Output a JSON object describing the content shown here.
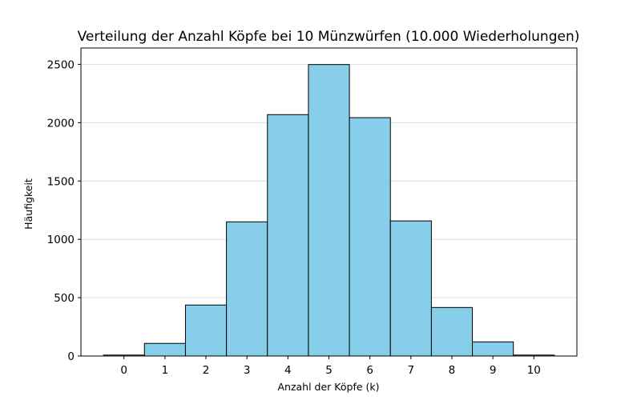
{
  "chart_data": {
    "type": "bar",
    "title": "Verteilung der Anzahl Köpfe bei 10 Münzwürfen (10.000 Wiederholungen)",
    "xlabel": "Anzahl der Köpfe (k)",
    "ylabel": "Häufigkeit",
    "categories": [
      "0",
      "1",
      "2",
      "3",
      "4",
      "5",
      "6",
      "7",
      "8",
      "9",
      "10"
    ],
    "values": [
      8,
      108,
      437,
      1150,
      2069,
      2498,
      2043,
      1158,
      416,
      121,
      8
    ],
    "ylim": [
      0,
      2640
    ],
    "yticks": [
      "0",
      "500",
      "1000",
      "1500",
      "2000",
      "2500"
    ],
    "grid": "horizontal",
    "bar_color": "#87ceeb",
    "edge_color": "#000000"
  }
}
